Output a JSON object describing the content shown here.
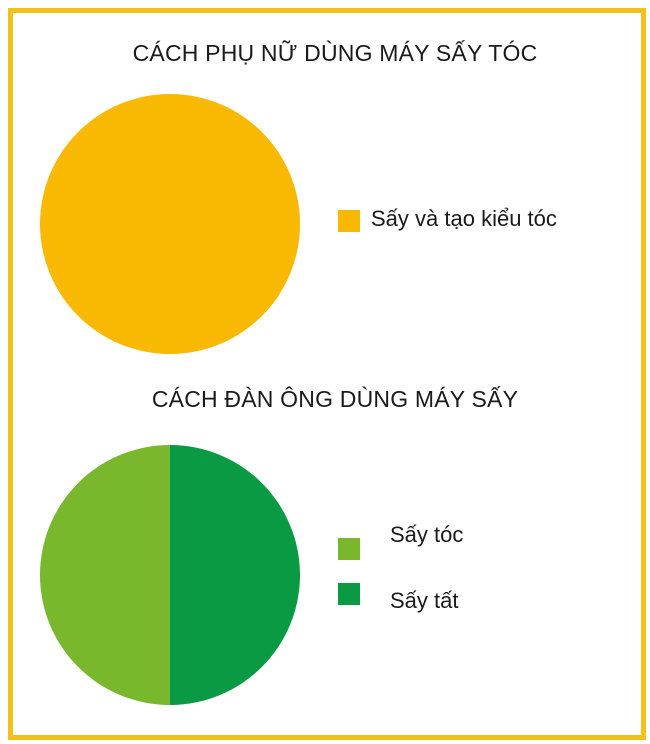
{
  "chart_data": [
    {
      "type": "pie",
      "title": "CÁCH PHỤ NỮ DÙNG MÁY SẤY TÓC",
      "categories": [
        "Sấy và tạo kiểu tóc"
      ],
      "values": [
        100
      ],
      "colors": [
        "#F9B801"
      ],
      "legend_position": "right"
    },
    {
      "type": "pie",
      "title": "CÁCH ĐÀN ÔNG DÙNG MÁY SẤY",
      "categories": [
        "Sấy tóc",
        "Sấy tất"
      ],
      "values": [
        50,
        50
      ],
      "colors": [
        "#79B72D",
        "#0A9A44"
      ],
      "legend_position": "right"
    }
  ],
  "frame_color": "#F2C11B"
}
